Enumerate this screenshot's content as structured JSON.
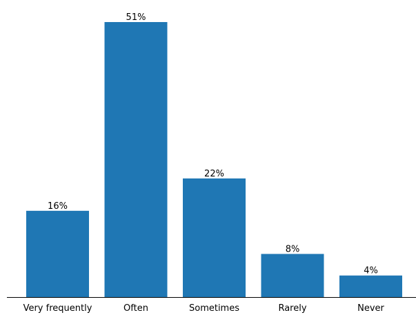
{
  "chart_data": {
    "type": "bar",
    "title": "",
    "xlabel": "",
    "ylabel": "",
    "categories": [
      "Very frequently",
      "Often",
      "Sometimes",
      "Rarely",
      "Never"
    ],
    "values": [
      16,
      51,
      22,
      8,
      4
    ],
    "data_labels": [
      "16%",
      "51%",
      "22%",
      "8%",
      "4%"
    ],
    "ylim": [
      0,
      51
    ],
    "grid": false,
    "legend": "none",
    "bar_color": "#1f77b4"
  }
}
